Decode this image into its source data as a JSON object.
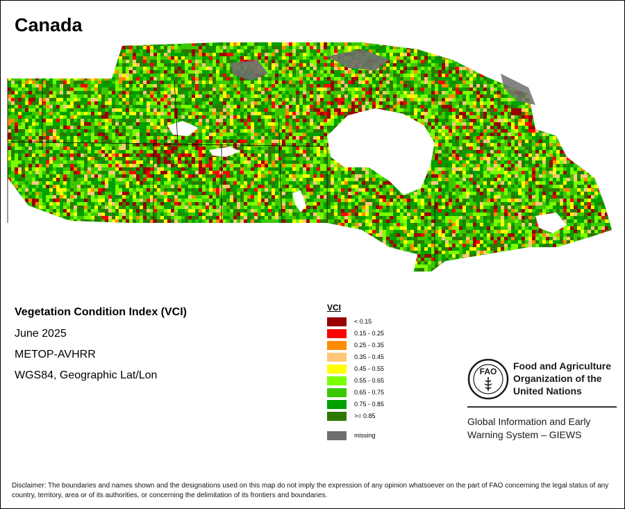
{
  "title": "Canada",
  "info": {
    "heading": "Vegetation Condition Index (VCI)",
    "date": "June 2025",
    "sensor": "METOP-AVHRR",
    "projection": "WGS84, Geographic Lat/Lon"
  },
  "legend": {
    "title": "VCI",
    "items": [
      {
        "label": "< 0.15",
        "color": "#990000"
      },
      {
        "label": "0.15 - 0.25",
        "color": "#ff0000"
      },
      {
        "label": "0.25 - 0.35",
        "color": "#ff8c00"
      },
      {
        "label": "0.35 - 0.45",
        "color": "#ffc878"
      },
      {
        "label": "0.45 - 0.55",
        "color": "#ffff00"
      },
      {
        "label": "0.55 - 0.65",
        "color": "#78ff00"
      },
      {
        "label": "0.65 - 0.75",
        "color": "#3cc800"
      },
      {
        "label": "0.75 - 0.85",
        "color": "#00a000"
      },
      {
        "label": ">= 0.85",
        "color": "#2d7800"
      }
    ],
    "missing": {
      "label": "missing",
      "color": "#6e6e6e"
    }
  },
  "fao": {
    "logo_letters": "FAO",
    "line1": "Food and Agriculture",
    "line2": "Organization of the",
    "line3": "United Nations",
    "giews1": "Global Information and Early",
    "giews2": "Warning System – GIEWS"
  },
  "disclaimer": "Disclaimer: The boundaries and names shown and the designations used on this map do not imply the expression of any opinion whatsoever on the part of FAO concerning the legal status of any country, territory, area or of its authorities, or concerning the delimitation of its frontiers and boundaries."
}
